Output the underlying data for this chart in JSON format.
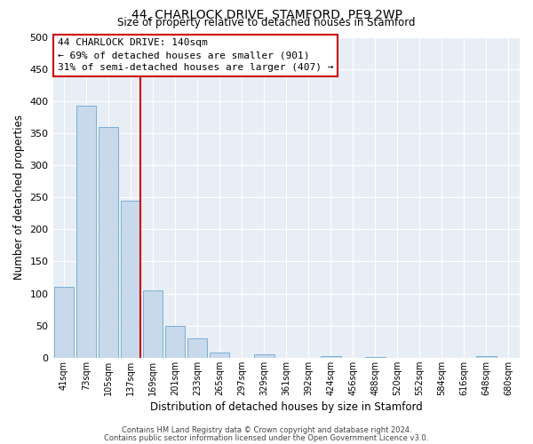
{
  "title": "44, CHARLOCK DRIVE, STAMFORD, PE9 2WP",
  "subtitle": "Size of property relative to detached houses in Stamford",
  "xlabel": "Distribution of detached houses by size in Stamford",
  "ylabel": "Number of detached properties",
  "bin_labels": [
    "41sqm",
    "73sqm",
    "105sqm",
    "137sqm",
    "169sqm",
    "201sqm",
    "233sqm",
    "265sqm",
    "297sqm",
    "329sqm",
    "361sqm",
    "392sqm",
    "424sqm",
    "456sqm",
    "488sqm",
    "520sqm",
    "552sqm",
    "584sqm",
    "616sqm",
    "648sqm",
    "680sqm"
  ],
  "bar_values": [
    110,
    393,
    360,
    244,
    105,
    50,
    30,
    8,
    0,
    5,
    0,
    0,
    2,
    0,
    1,
    0,
    0,
    0,
    0,
    2,
    0
  ],
  "bar_color": "#c8d9eb",
  "bar_edge_color": "#7aafd4",
  "highlight_bar_index": 3,
  "vline_color": "#cc0000",
  "annotation_box_text": "44 CHARLOCK DRIVE: 140sqm\n← 69% of detached houses are smaller (901)\n31% of semi-detached houses are larger (407) →",
  "annotation_box_color": "white",
  "annotation_box_edge_color": "#cc0000",
  "ylim": [
    0,
    500
  ],
  "yticks": [
    0,
    50,
    100,
    150,
    200,
    250,
    300,
    350,
    400,
    450,
    500
  ],
  "footer_line1": "Contains HM Land Registry data © Crown copyright and database right 2024.",
  "footer_line2": "Contains public sector information licensed under the Open Government Licence v3.0.",
  "fig_bg_color": "#ffffff",
  "plot_bg_color": "#e8eef5"
}
